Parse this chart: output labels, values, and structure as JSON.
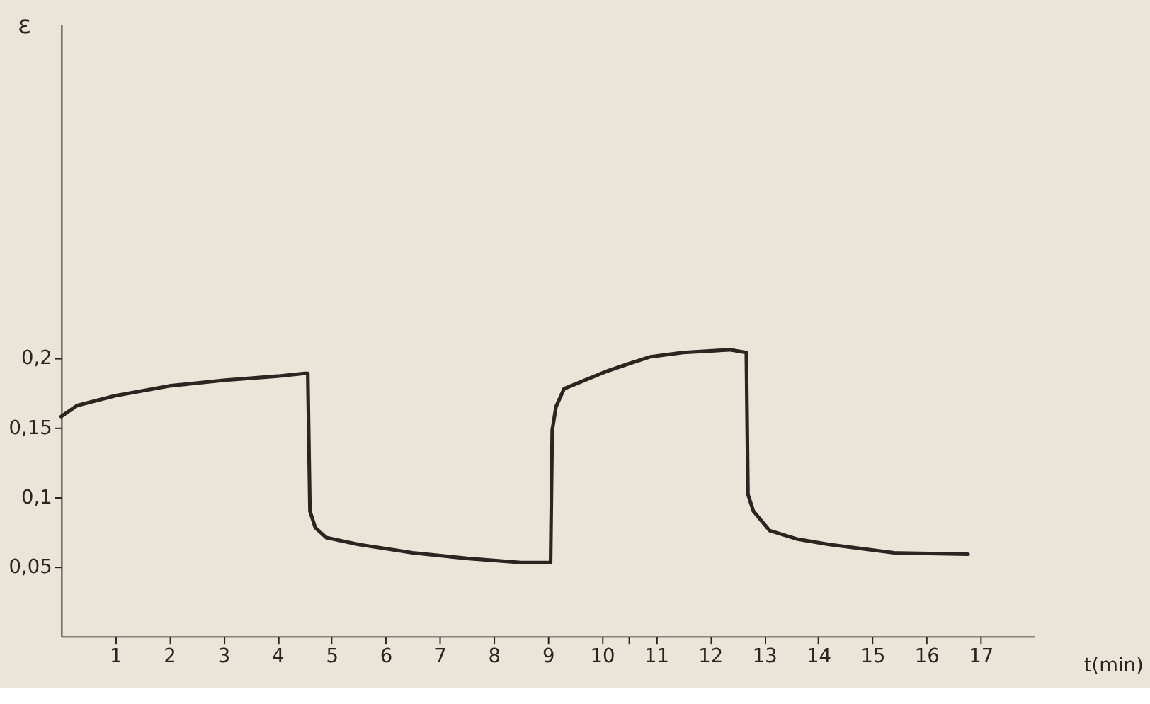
{
  "chart_data": {
    "type": "line",
    "xlabel": "t(min)",
    "ylabel": "ε",
    "x": [
      0,
      0.3,
      1,
      2,
      3,
      4,
      4.5,
      4.56,
      4.6,
      4.7,
      4.9,
      5.5,
      6.5,
      7.5,
      8.5,
      9.05,
      9.08,
      9.15,
      9.3,
      10.05,
      10.5,
      10.9,
      11.5,
      12.36,
      12.67,
      12.7,
      12.8,
      13.1,
      13.6,
      14.2,
      15.4,
      16.77
    ],
    "series": [
      {
        "color": "#2b2420",
        "values": [
          0.158,
          0.166,
          0.173,
          0.18,
          0.184,
          0.187,
          0.189,
          0.189,
          0.09,
          0.078,
          0.071,
          0.066,
          0.06,
          0.056,
          0.053,
          0.053,
          0.148,
          0.165,
          0.178,
          0.19,
          0.196,
          0.201,
          0.204,
          0.206,
          0.204,
          0.102,
          0.09,
          0.076,
          0.07,
          0.066,
          0.06,
          0.059
        ]
      }
    ],
    "xlim": [
      0,
      18
    ],
    "xticks": [
      1,
      2,
      3,
      4,
      5,
      6,
      7,
      8,
      9,
      10,
      {
        "value": 10.5,
        "label": null
      },
      11,
      12,
      13,
      14,
      15,
      16,
      17
    ],
    "ylim": [
      0,
      0.44
    ],
    "yticks": [
      {
        "value": 0.05,
        "label": "0,05"
      },
      {
        "value": 0.1,
        "label": "0,1"
      },
      {
        "value": 0.15,
        "label": "0,15"
      },
      {
        "value": 0.2,
        "label": "0,2"
      }
    ],
    "grid": false,
    "marker": "none",
    "line_style": "solid"
  }
}
